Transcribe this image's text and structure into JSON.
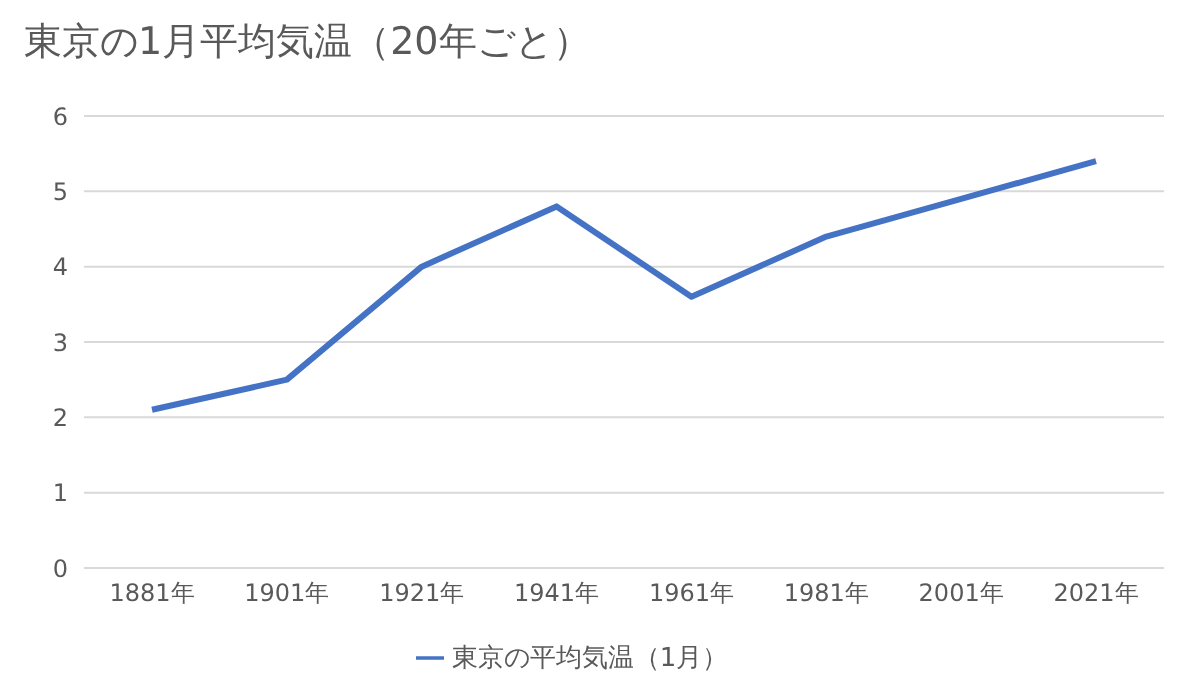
{
  "chart_data": {
    "type": "line",
    "title": "東京の1月平均気温（20年ごと）",
    "categories": [
      "1881年",
      "1901年",
      "1921年",
      "1941年",
      "1961年",
      "1981年",
      "2001年",
      "2021年"
    ],
    "series": [
      {
        "name": "東京の平均気温（1月）",
        "color": "#4472c4",
        "values": [
          2.1,
          2.5,
          4.0,
          4.8,
          3.6,
          4.4,
          4.9,
          5.4
        ]
      }
    ],
    "ylim": [
      0,
      6
    ],
    "yticks": [
      0,
      1,
      2,
      3,
      4,
      5,
      6
    ],
    "grid": "y",
    "legend": "bottom",
    "marker": "none",
    "line_style": "solid"
  }
}
